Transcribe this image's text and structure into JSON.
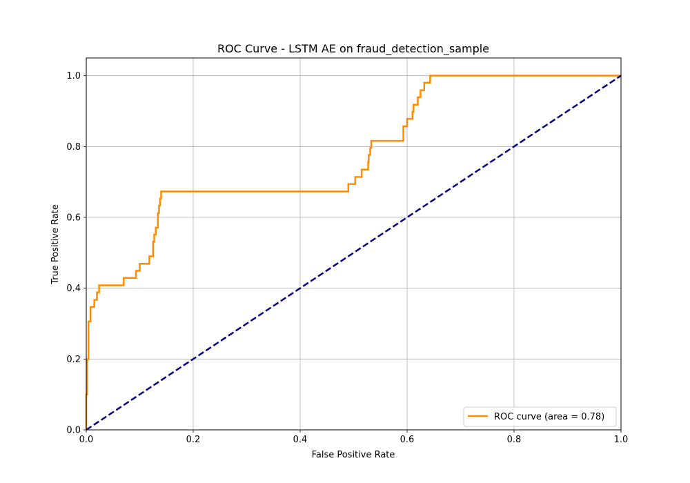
{
  "chart_data": {
    "type": "line",
    "title": "ROC Curve - LSTM AE on fraud_detection_sample",
    "xlabel": "False Positive Rate",
    "ylabel": "True Positive Rate",
    "xlim": [
      0.0,
      1.0
    ],
    "ylim": [
      0.0,
      1.05
    ],
    "xticks": [
      "0.0",
      "0.2",
      "0.4",
      "0.6",
      "0.8",
      "1.0"
    ],
    "yticks": [
      "0.0",
      "0.2",
      "0.4",
      "0.6",
      "0.8",
      "1.0"
    ],
    "grid": true,
    "legend_position": "lower-right",
    "series": [
      {
        "name": "ROC curve (area = 0.78)",
        "color": "#ff8c00",
        "style": "solid",
        "x": [
          0.0,
          0.0,
          0.002,
          0.002,
          0.004,
          0.004,
          0.008,
          0.008,
          0.015,
          0.015,
          0.02,
          0.02,
          0.024,
          0.024,
          0.07,
          0.07,
          0.093,
          0.093,
          0.1,
          0.1,
          0.118,
          0.118,
          0.125,
          0.125,
          0.127,
          0.127,
          0.13,
          0.13,
          0.134,
          0.134,
          0.136,
          0.136,
          0.138,
          0.138,
          0.14,
          0.14,
          0.49,
          0.49,
          0.503,
          0.503,
          0.515,
          0.515,
          0.527,
          0.527,
          0.528,
          0.528,
          0.531,
          0.531,
          0.533,
          0.533,
          0.593,
          0.593,
          0.6,
          0.6,
          0.61,
          0.61,
          0.612,
          0.612,
          0.62,
          0.62,
          0.625,
          0.625,
          0.632,
          0.632,
          0.643,
          0.643,
          1.0
        ],
        "y": [
          0.0,
          0.1,
          0.1,
          0.2,
          0.2,
          0.306,
          0.306,
          0.347,
          0.347,
          0.367,
          0.367,
          0.388,
          0.388,
          0.408,
          0.408,
          0.429,
          0.429,
          0.449,
          0.449,
          0.469,
          0.469,
          0.49,
          0.49,
          0.531,
          0.531,
          0.551,
          0.551,
          0.571,
          0.571,
          0.612,
          0.612,
          0.633,
          0.633,
          0.653,
          0.653,
          0.673,
          0.673,
          0.694,
          0.694,
          0.714,
          0.714,
          0.735,
          0.735,
          0.755,
          0.755,
          0.776,
          0.776,
          0.796,
          0.796,
          0.816,
          0.816,
          0.857,
          0.857,
          0.878,
          0.878,
          0.898,
          0.898,
          0.918,
          0.918,
          0.939,
          0.939,
          0.959,
          0.959,
          0.98,
          0.98,
          1.0,
          1.0
        ]
      },
      {
        "name": "",
        "color": "#000080",
        "style": "dashed",
        "x": [
          0.0,
          1.0
        ],
        "y": [
          0.0,
          1.0
        ]
      }
    ],
    "legend": [
      {
        "label": "ROC curve (area = 0.78)",
        "color": "#ff8c00"
      }
    ]
  }
}
